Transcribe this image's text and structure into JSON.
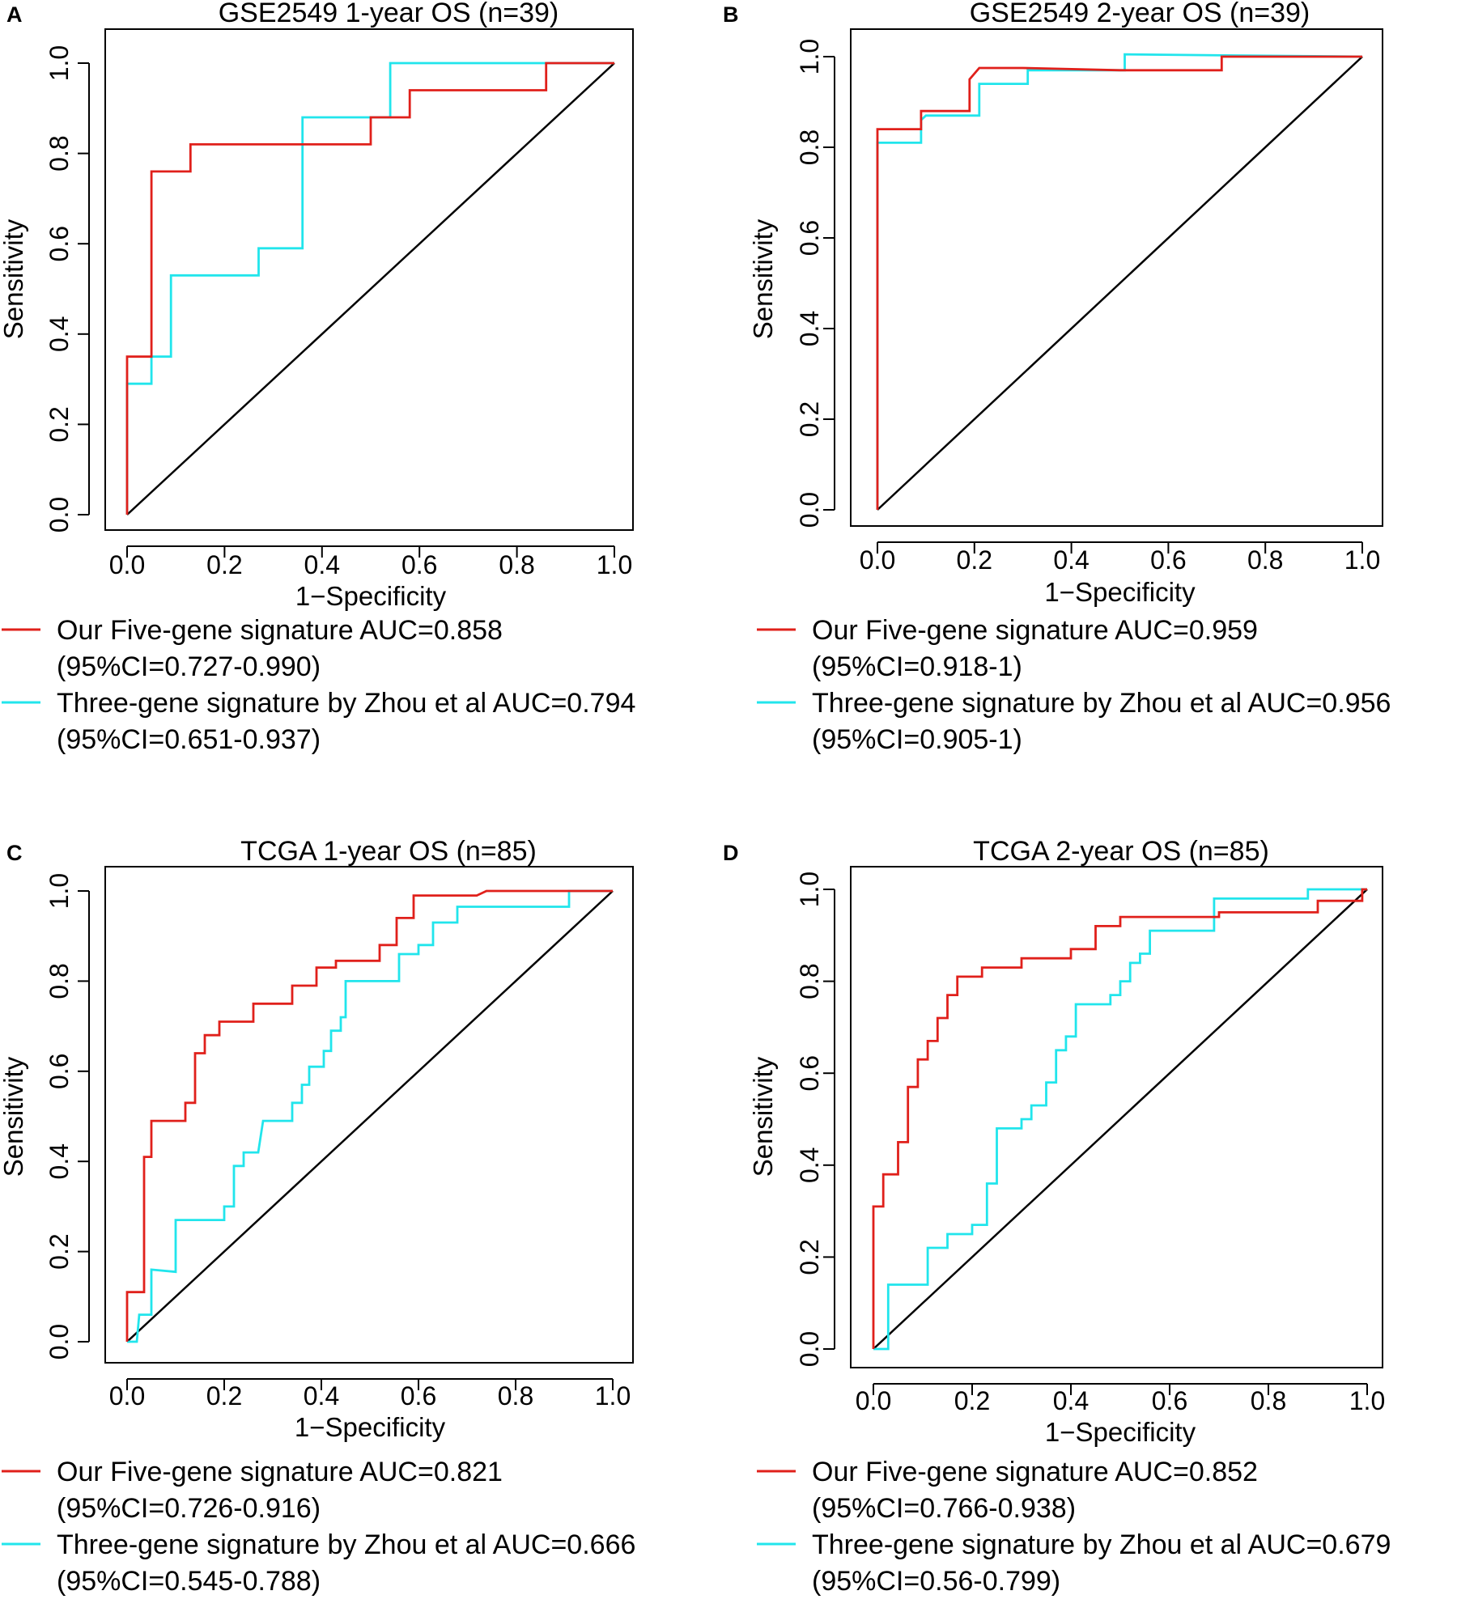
{
  "colors": {
    "five_gene": "#e0201b",
    "three_gene": "#21e5ec",
    "diagonal": "#000000",
    "axes": "#000000"
  },
  "chart_data": [
    {
      "panel": "A",
      "type": "line",
      "title": "GSE2549 1-year OS (n=39)",
      "xlabel": "1−Specificity",
      "ylabel": "Sensitivity",
      "xlim": [
        0,
        1
      ],
      "ylim": [
        0,
        1
      ],
      "xticks": [
        "0.0",
        "0.2",
        "0.4",
        "0.6",
        "0.8",
        "1.0"
      ],
      "yticks": [
        "0.0",
        "0.2",
        "0.4",
        "0.6",
        "0.8",
        "1.0"
      ],
      "reference_line": [
        [
          0,
          0
        ],
        [
          1,
          1
        ]
      ],
      "series": [
        {
          "name": "Our Five-gene signature AUC=0.858",
          "ci": "(95%CI=0.727-0.990)",
          "color_key": "five_gene",
          "points": [
            [
              0,
              0
            ],
            [
              0,
              0.35
            ],
            [
              0.05,
              0.35
            ],
            [
              0.05,
              0.76
            ],
            [
              0.13,
              0.76
            ],
            [
              0.13,
              0.82
            ],
            [
              0.5,
              0.82
            ],
            [
              0.5,
              0.88
            ],
            [
              0.58,
              0.88
            ],
            [
              0.58,
              0.94
            ],
            [
              0.86,
              0.94
            ],
            [
              0.86,
              1.0
            ],
            [
              1,
              1
            ]
          ]
        },
        {
          "name": "Three-gene signature by Zhou et al AUC=0.794",
          "ci": "(95%CI=0.651-0.937)",
          "color_key": "three_gene",
          "points": [
            [
              0,
              0
            ],
            [
              0,
              0.29
            ],
            [
              0.05,
              0.29
            ],
            [
              0.05,
              0.35
            ],
            [
              0.09,
              0.35
            ],
            [
              0.09,
              0.53
            ],
            [
              0.27,
              0.53
            ],
            [
              0.27,
              0.59
            ],
            [
              0.36,
              0.59
            ],
            [
              0.36,
              0.88
            ],
            [
              0.54,
              0.88
            ],
            [
              0.54,
              1.0
            ],
            [
              1,
              1
            ]
          ]
        }
      ]
    },
    {
      "panel": "B",
      "type": "line",
      "title": "GSE2549 2-year OS (n=39)",
      "xlabel": "1−Specificity",
      "ylabel": "Sensitivity",
      "xlim": [
        0,
        1
      ],
      "ylim": [
        0,
        1
      ],
      "xticks": [
        "0.0",
        "0.2",
        "0.4",
        "0.6",
        "0.8",
        "1.0"
      ],
      "yticks": [
        "0.0",
        "0.2",
        "0.4",
        "0.6",
        "0.8",
        "1.0"
      ],
      "reference_line": [
        [
          0,
          0
        ],
        [
          1,
          1
        ]
      ],
      "series": [
        {
          "name": "Our Five-gene signature AUC=0.959",
          "ci": "(95%CI=0.918-1)",
          "color_key": "five_gene",
          "points": [
            [
              0,
              0
            ],
            [
              0,
              0.84
            ],
            [
              0.09,
              0.84
            ],
            [
              0.09,
              0.88
            ],
            [
              0.19,
              0.88
            ],
            [
              0.19,
              0.95
            ],
            [
              0.21,
              0.975
            ],
            [
              0.3,
              0.975
            ],
            [
              0.5,
              0.97
            ],
            [
              0.71,
              0.97
            ],
            [
              0.71,
              1.0
            ],
            [
              1,
              1
            ]
          ]
        },
        {
          "name": "Three-gene signature by Zhou et al AUC=0.956",
          "ci": "(95%CI=0.905-1)",
          "color_key": "three_gene",
          "points": [
            [
              0,
              0
            ],
            [
              0,
              0.81
            ],
            [
              0.09,
              0.81
            ],
            [
              0.09,
              0.86
            ],
            [
              0.1,
              0.87
            ],
            [
              0.21,
              0.87
            ],
            [
              0.21,
              0.94
            ],
            [
              0.31,
              0.94
            ],
            [
              0.31,
              0.97
            ],
            [
              0.51,
              0.97
            ],
            [
              0.51,
              1.005
            ],
            [
              1,
              1
            ]
          ]
        }
      ]
    },
    {
      "panel": "C",
      "type": "line",
      "title": "TCGA 1-year OS (n=85)",
      "xlabel": "1−Specificity",
      "ylabel": "Sensitivity",
      "xlim": [
        0,
        1
      ],
      "ylim": [
        0,
        1
      ],
      "xticks": [
        "0.0",
        "0.2",
        "0.4",
        "0.6",
        "0.8",
        "1.0"
      ],
      "yticks": [
        "0.0",
        "0.2",
        "0.4",
        "0.6",
        "0.8",
        "1.0"
      ],
      "reference_line": [
        [
          0,
          0
        ],
        [
          1,
          1
        ]
      ],
      "series": [
        {
          "name": "Our Five-gene signature AUC=0.821",
          "ci": "(95%CI=0.726-0.916)",
          "color_key": "five_gene",
          "points": [
            [
              0,
              0
            ],
            [
              0,
              0.11
            ],
            [
              0.035,
              0.11
            ],
            [
              0.035,
              0.41
            ],
            [
              0.05,
              0.41
            ],
            [
              0.05,
              0.49
            ],
            [
              0.12,
              0.49
            ],
            [
              0.12,
              0.53
            ],
            [
              0.14,
              0.53
            ],
            [
              0.14,
              0.64
            ],
            [
              0.16,
              0.64
            ],
            [
              0.16,
              0.68
            ],
            [
              0.19,
              0.68
            ],
            [
              0.19,
              0.71
            ],
            [
              0.26,
              0.71
            ],
            [
              0.26,
              0.75
            ],
            [
              0.34,
              0.75
            ],
            [
              0.34,
              0.79
            ],
            [
              0.39,
              0.79
            ],
            [
              0.39,
              0.83
            ],
            [
              0.43,
              0.83
            ],
            [
              0.43,
              0.845
            ],
            [
              0.52,
              0.845
            ],
            [
              0.52,
              0.88
            ],
            [
              0.555,
              0.88
            ],
            [
              0.555,
              0.94
            ],
            [
              0.59,
              0.94
            ],
            [
              0.59,
              0.99
            ],
            [
              0.72,
              0.99
            ],
            [
              0.74,
              1.0
            ],
            [
              1,
              1
            ]
          ]
        },
        {
          "name": "Three-gene signature by Zhou et al AUC=0.666",
          "ci": "(95%CI=0.545-0.788)",
          "color_key": "three_gene",
          "points": [
            [
              0,
              0
            ],
            [
              0.02,
              0
            ],
            [
              0.025,
              0.06
            ],
            [
              0.05,
              0.06
            ],
            [
              0.05,
              0.16
            ],
            [
              0.1,
              0.155
            ],
            [
              0.1,
              0.27
            ],
            [
              0.2,
              0.27
            ],
            [
              0.2,
              0.3
            ],
            [
              0.22,
              0.3
            ],
            [
              0.22,
              0.39
            ],
            [
              0.24,
              0.39
            ],
            [
              0.24,
              0.42
            ],
            [
              0.27,
              0.42
            ],
            [
              0.28,
              0.49
            ],
            [
              0.34,
              0.49
            ],
            [
              0.34,
              0.53
            ],
            [
              0.36,
              0.53
            ],
            [
              0.36,
              0.57
            ],
            [
              0.375,
              0.57
            ],
            [
              0.375,
              0.61
            ],
            [
              0.405,
              0.61
            ],
            [
              0.405,
              0.645
            ],
            [
              0.42,
              0.645
            ],
            [
              0.42,
              0.69
            ],
            [
              0.44,
              0.69
            ],
            [
              0.44,
              0.72
            ],
            [
              0.45,
              0.72
            ],
            [
              0.45,
              0.8
            ],
            [
              0.56,
              0.8
            ],
            [
              0.56,
              0.86
            ],
            [
              0.6,
              0.86
            ],
            [
              0.6,
              0.88
            ],
            [
              0.63,
              0.88
            ],
            [
              0.63,
              0.93
            ],
            [
              0.68,
              0.93
            ],
            [
              0.68,
              0.965
            ],
            [
              0.91,
              0.965
            ],
            [
              0.91,
              1.0
            ],
            [
              1,
              1
            ]
          ]
        }
      ]
    },
    {
      "panel": "D",
      "type": "line",
      "title": "TCGA 2-year OS (n=85)",
      "xlabel": "1−Specificity",
      "ylabel": "Sensitivity",
      "xlim": [
        0,
        1
      ],
      "ylim": [
        0,
        1
      ],
      "xticks": [
        "0.0",
        "0.2",
        "0.4",
        "0.6",
        "0.8",
        "1.0"
      ],
      "yticks": [
        "0.0",
        "0.2",
        "0.4",
        "0.6",
        "0.8",
        "1.0"
      ],
      "reference_line": [
        [
          0,
          0
        ],
        [
          1,
          1
        ]
      ],
      "series": [
        {
          "name": "Our Five-gene signature AUC=0.852",
          "ci": "(95%CI=0.766-0.938)",
          "color_key": "five_gene",
          "points": [
            [
              0,
              0
            ],
            [
              0,
              0.31
            ],
            [
              0.02,
              0.31
            ],
            [
              0.02,
              0.38
            ],
            [
              0.05,
              0.38
            ],
            [
              0.05,
              0.45
            ],
            [
              0.07,
              0.45
            ],
            [
              0.07,
              0.57
            ],
            [
              0.09,
              0.57
            ],
            [
              0.09,
              0.63
            ],
            [
              0.11,
              0.63
            ],
            [
              0.11,
              0.67
            ],
            [
              0.13,
              0.67
            ],
            [
              0.13,
              0.72
            ],
            [
              0.15,
              0.72
            ],
            [
              0.15,
              0.77
            ],
            [
              0.17,
              0.77
            ],
            [
              0.17,
              0.81
            ],
            [
              0.22,
              0.81
            ],
            [
              0.22,
              0.83
            ],
            [
              0.3,
              0.83
            ],
            [
              0.3,
              0.85
            ],
            [
              0.4,
              0.85
            ],
            [
              0.4,
              0.87
            ],
            [
              0.45,
              0.87
            ],
            [
              0.45,
              0.92
            ],
            [
              0.5,
              0.92
            ],
            [
              0.5,
              0.94
            ],
            [
              0.7,
              0.94
            ],
            [
              0.7,
              0.95
            ],
            [
              0.9,
              0.95
            ],
            [
              0.9,
              0.975
            ],
            [
              0.99,
              0.975
            ],
            [
              0.99,
              1.0
            ],
            [
              1,
              1
            ]
          ]
        },
        {
          "name": "Three-gene signature by Zhou et al AUC=0.679",
          "ci": "(95%CI=0.56-0.799)",
          "color_key": "three_gene",
          "points": [
            [
              0,
              0
            ],
            [
              0.03,
              0
            ],
            [
              0.03,
              0.14
            ],
            [
              0.11,
              0.14
            ],
            [
              0.11,
              0.22
            ],
            [
              0.15,
              0.22
            ],
            [
              0.15,
              0.25
            ],
            [
              0.2,
              0.25
            ],
            [
              0.2,
              0.27
            ],
            [
              0.23,
              0.27
            ],
            [
              0.23,
              0.36
            ],
            [
              0.25,
              0.36
            ],
            [
              0.25,
              0.48
            ],
            [
              0.3,
              0.48
            ],
            [
              0.3,
              0.5
            ],
            [
              0.32,
              0.5
            ],
            [
              0.32,
              0.53
            ],
            [
              0.35,
              0.53
            ],
            [
              0.35,
              0.58
            ],
            [
              0.37,
              0.58
            ],
            [
              0.37,
              0.65
            ],
            [
              0.39,
              0.65
            ],
            [
              0.39,
              0.68
            ],
            [
              0.41,
              0.68
            ],
            [
              0.41,
              0.75
            ],
            [
              0.48,
              0.75
            ],
            [
              0.48,
              0.77
            ],
            [
              0.5,
              0.77
            ],
            [
              0.5,
              0.8
            ],
            [
              0.52,
              0.8
            ],
            [
              0.52,
              0.84
            ],
            [
              0.54,
              0.84
            ],
            [
              0.54,
              0.86
            ],
            [
              0.56,
              0.86
            ],
            [
              0.56,
              0.91
            ],
            [
              0.69,
              0.91
            ],
            [
              0.69,
              0.98
            ],
            [
              0.88,
              0.98
            ],
            [
              0.88,
              1.0
            ],
            [
              1,
              1
            ]
          ]
        }
      ]
    }
  ]
}
